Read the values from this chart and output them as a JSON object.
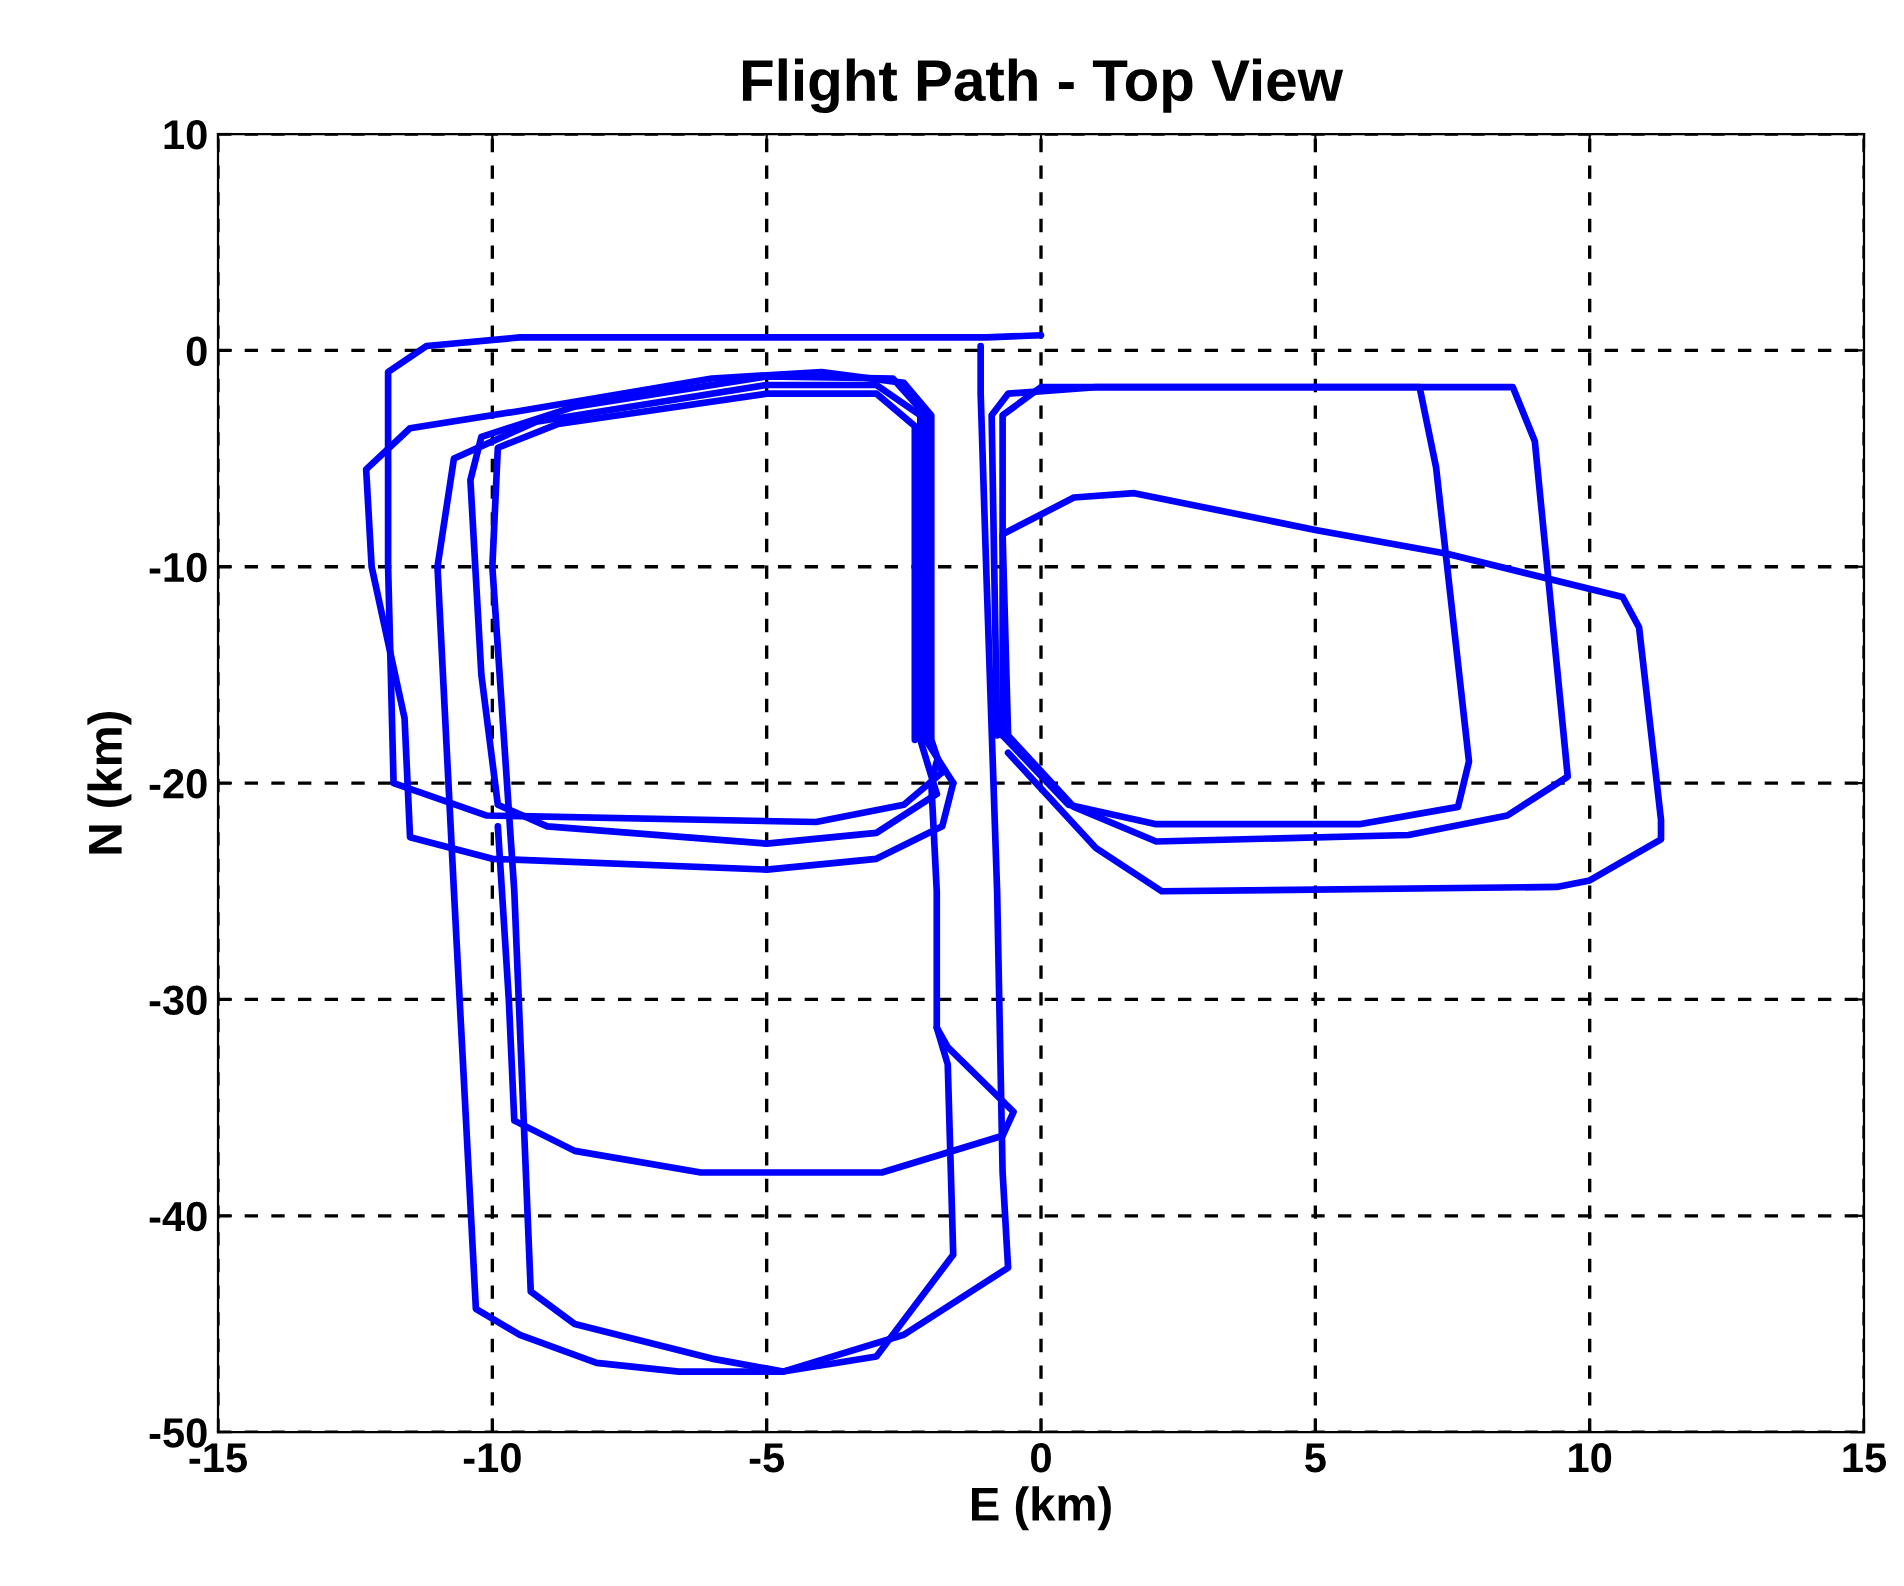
{
  "chart_data": {
    "type": "line",
    "title": "Flight Path - Top View",
    "xlabel": "E (km)",
    "ylabel": "N (km)",
    "xlim": [
      -15,
      15
    ],
    "ylim": [
      -50,
      10
    ],
    "xticks": [
      -15,
      -10,
      -5,
      0,
      5,
      10,
      15
    ],
    "yticks": [
      -50,
      -40,
      -30,
      -20,
      -10,
      0,
      10
    ],
    "grid": true,
    "line_style": "solid",
    "marker": "none",
    "series": [
      {
        "color": "#0000ff",
        "x": [
          0,
          -1,
          -9.5,
          -11.2,
          -11.9,
          -11.9,
          -11.8,
          -10.1,
          -4.1,
          -2.5,
          -1.8
        ],
        "values": [
          0.7,
          0.6,
          0.6,
          0.2,
          -1,
          -10,
          -20,
          -21.5,
          -21.8,
          -21,
          -19.5
        ]
      },
      {
        "color": "#0000ff",
        "x": [
          -1.8,
          -2.0,
          -2.0,
          -2.5,
          -4,
          -6,
          -9.5,
          -11.5,
          -12.3,
          -12.2,
          -11.6,
          -11.5,
          -10,
          -5,
          -3,
          -1.8,
          -1.6
        ],
        "values": [
          -19.5,
          -18,
          -3,
          -1.5,
          -1.0,
          -1.3,
          -2.8,
          -3.6,
          -5.5,
          -10,
          -17,
          -22.5,
          -23.5,
          -24,
          -23.5,
          -22,
          -20
        ]
      },
      {
        "color": "#0000ff",
        "x": [
          -1.6,
          -2.1,
          -2.1,
          -2.7,
          -5,
          -8.5,
          -10.2,
          -10.4,
          -10.2,
          -9.9,
          -9,
          -5,
          -3,
          -1.9
        ],
        "values": [
          -20,
          -18,
          -3,
          -1.3,
          -1.2,
          -2.6,
          -4,
          -6,
          -15,
          -21,
          -22,
          -22.8,
          -22.3,
          -20.5
        ]
      },
      {
        "color": "#0000ff",
        "x": [
          -1.9,
          -2.2,
          -2.2,
          -3,
          -5,
          -9.2,
          -10.7,
          -11,
          -10.7,
          -10.3,
          -9.5,
          -8.1,
          -6.6,
          -4.7,
          -2.5,
          -0.6,
          -0.7,
          -0.8,
          -1.0,
          -1.1,
          -1.1
        ],
        "values": [
          -20.5,
          -18,
          -3,
          -1.6,
          -1.6,
          -3.3,
          -5,
          -10,
          -25,
          -44.3,
          -45.5,
          -46.8,
          -47.2,
          -47.2,
          -45.5,
          -42.4,
          -38,
          -25,
          -10,
          -2,
          0.2
        ]
      },
      {
        "color": "#0000ff",
        "x": [
          -2.3,
          -2.3,
          -3,
          -5,
          -8.8,
          -9.9,
          -10.0,
          -9.6,
          -9.3,
          -8.5,
          -6,
          -4.7,
          -3,
          -1.6,
          -1.7,
          -1.9,
          -1.9,
          -2.0,
          -1.9
        ],
        "values": [
          -18,
          -3.5,
          -2,
          -2,
          -3.4,
          -4.5,
          -10,
          -25,
          -43.5,
          -45,
          -46.6,
          -47.2,
          -46.5,
          -41.8,
          -33,
          -31.3,
          -25,
          -20,
          -19
        ]
      },
      {
        "color": "#0000ff",
        "x": [
          -9.9,
          -9.7,
          -9.6,
          -8.5,
          -6.2,
          -2.9,
          -0.7,
          -0.5,
          -1.7,
          -1.9
        ],
        "values": [
          -22,
          -30,
          -35.6,
          -37,
          -38,
          -38,
          -36.3,
          -35.2,
          -32.2,
          -31.3
        ]
      },
      {
        "color": "#0000ff",
        "x": [
          -0.8,
          -0.9,
          -0.6,
          1,
          6.9,
          7.2,
          7.8,
          7.6,
          5.8,
          2.1,
          0.5,
          -0.7
        ],
        "values": [
          -17.8,
          -3,
          -2,
          -1.7,
          -1.7,
          -5.4,
          -19,
          -21.1,
          -21.9,
          -21.9,
          -21,
          -17.8
        ]
      },
      {
        "color": "#0000ff",
        "x": [
          -0.7,
          -0.7,
          0,
          8.6,
          9.0,
          9.6,
          8.5,
          6.7,
          2.1,
          0.6,
          -0.6
        ],
        "values": [
          -17.8,
          -3,
          -1.7,
          -1.7,
          -4.2,
          -19.7,
          -21.5,
          -22.4,
          -22.7,
          -21.1,
          -17.8
        ]
      },
      {
        "color": "#0000ff",
        "x": [
          -0.6,
          -0.7,
          0.6,
          1.7,
          5,
          7.4,
          10.6,
          10.9,
          11.3,
          11.3,
          10,
          9.4,
          2.2,
          1,
          -0.6
        ],
        "values": [
          -17.8,
          -8.5,
          -6.8,
          -6.6,
          -8.3,
          -9.4,
          -11.4,
          -12.8,
          -21.7,
          -22.6,
          -24.5,
          -24.8,
          -25,
          -23,
          -18.6
        ]
      }
    ]
  }
}
